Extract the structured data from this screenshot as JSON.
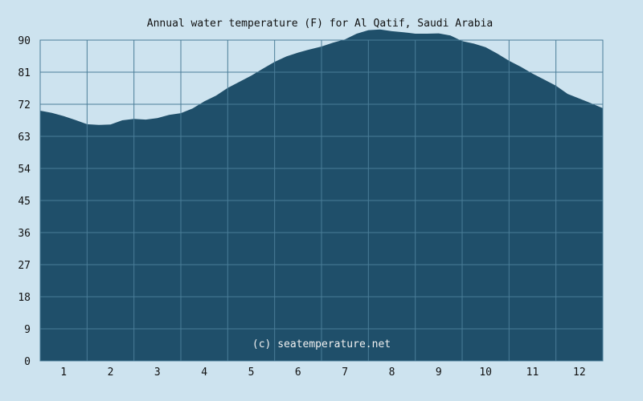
{
  "chart_data": {
    "type": "area",
    "title": "Annual water temperature (F) for Al Qatif, Saudi Arabia",
    "xlabel": "",
    "ylabel": "",
    "x_ticks": [
      "1",
      "2",
      "3",
      "4",
      "5",
      "6",
      "7",
      "8",
      "9",
      "10",
      "11",
      "12"
    ],
    "y_ticks": [
      "0",
      "9",
      "18",
      "27",
      "36",
      "45",
      "54",
      "63",
      "72",
      "81",
      "90"
    ],
    "xlim": [
      0.5,
      12.5
    ],
    "ylim": [
      0,
      90
    ],
    "grid": true,
    "credit": "(c) seatemperature.net",
    "colors": {
      "fill": "#1f4f6a",
      "background": "#cde3ef",
      "grid": "#4a7d98"
    },
    "x": [
      0.5,
      0.75,
      1.0,
      1.25,
      1.5,
      1.75,
      2.0,
      2.25,
      2.5,
      2.75,
      3.0,
      3.25,
      3.5,
      3.75,
      4.0,
      4.25,
      4.5,
      4.75,
      5.0,
      5.25,
      5.5,
      5.75,
      6.0,
      6.25,
      6.5,
      6.75,
      7.0,
      7.25,
      7.5,
      7.75,
      8.0,
      8.25,
      8.5,
      8.75,
      9.0,
      9.25,
      9.5,
      9.75,
      10.0,
      10.25,
      10.5,
      10.75,
      11.0,
      11.25,
      11.5,
      11.75,
      12.0,
      12.25,
      12.5
    ],
    "series": [
      {
        "values": [
          70.2,
          69.6,
          68.7,
          67.6,
          66.4,
          66.2,
          66.3,
          67.5,
          67.9,
          67.7,
          68.1,
          69.0,
          69.5,
          70.8,
          72.8,
          74.4,
          76.6,
          78.3,
          80.0,
          82.0,
          83.9,
          85.4,
          86.5,
          87.4,
          88.2,
          89.3,
          90.2,
          91.8,
          92.8,
          93.0,
          92.5,
          92.2,
          91.8,
          91.8,
          91.9,
          91.3,
          89.7,
          89.0,
          88.0,
          86.2,
          84.2,
          82.5,
          80.6,
          78.9,
          77.2,
          74.9,
          73.6,
          72.3,
          70.9
        ]
      }
    ]
  }
}
